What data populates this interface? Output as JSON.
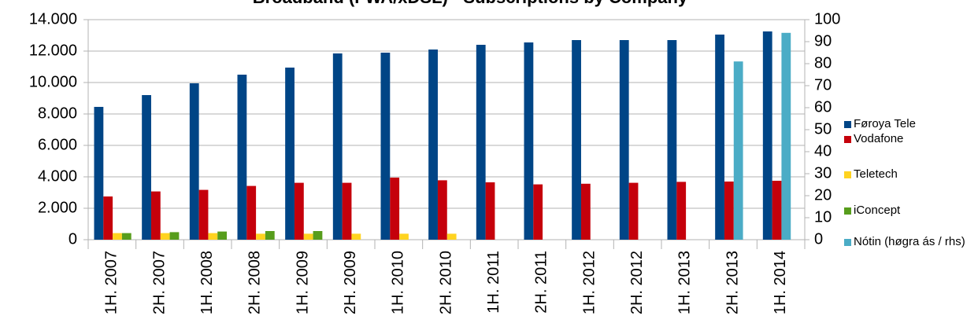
{
  "chart_data": {
    "type": "bar",
    "title": "Broadband (FWA/xDSL) - Subscriptions by Company",
    "categories": [
      "1H. 2007",
      "2H. 2007",
      "1H. 2008",
      "2H. 2008",
      "1H. 2009",
      "2H. 2009",
      "1H. 2010",
      "2H. 2010",
      "1H. 2011",
      "2H. 2011",
      "1H. 2012",
      "2H. 2012",
      "1H. 2013",
      "2H. 2013",
      "1H. 2014"
    ],
    "series": [
      {
        "name": "Føroya Tele",
        "color": "#004586",
        "values": [
          8450,
          9200,
          9950,
          10500,
          10950,
          11850,
          11900,
          12100,
          12400,
          12550,
          12700,
          12700,
          12700,
          13050,
          13250
        ]
      },
      {
        "name": "Vodafone",
        "color": "#c5000b",
        "values": [
          2750,
          3070,
          3170,
          3420,
          3620,
          3620,
          3950,
          3780,
          3650,
          3520,
          3560,
          3620,
          3680,
          3700,
          3750
        ]
      },
      {
        "name": "Teletech",
        "color": "#ffd320",
        "values": [
          420,
          420,
          420,
          380,
          380,
          380,
          380,
          380,
          null,
          null,
          null,
          null,
          null,
          null,
          null
        ]
      },
      {
        "name": "iConcept",
        "color": "#579d1c",
        "values": [
          420,
          480,
          520,
          550,
          550,
          null,
          null,
          null,
          null,
          null,
          null,
          null,
          null,
          null,
          null
        ]
      },
      {
        "name": "Nótin (høgra ás / rhs)",
        "color": "#4bacc6",
        "axis": "y2",
        "values": [
          null,
          null,
          null,
          null,
          null,
          null,
          null,
          null,
          null,
          null,
          null,
          null,
          null,
          81,
          94
        ]
      }
    ],
    "ylim": [
      0,
      14000
    ],
    "yticks": [
      0,
      {
        "value": 2000,
        "label": "2.000"
      },
      {
        "value": 4000,
        "label": "4.000"
      },
      {
        "value": 6000,
        "label": "6.000"
      },
      {
        "value": 8000,
        "label": "8.000"
      },
      {
        "value": 10000,
        "label": "10.000"
      },
      {
        "value": 12000,
        "label": "12.000"
      },
      {
        "value": 14000,
        "label": "14.000"
      }
    ],
    "y2lim": [
      0,
      100
    ],
    "y2ticks": [
      0,
      10,
      20,
      30,
      40,
      50,
      60,
      70,
      80,
      90,
      100
    ],
    "grid": true
  }
}
